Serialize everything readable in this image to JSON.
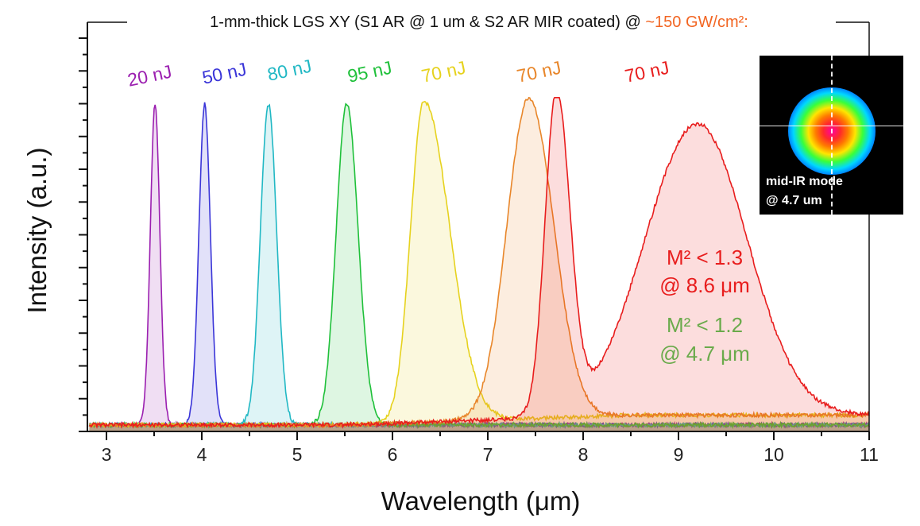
{
  "chart_data": {
    "type": "line",
    "title_main": "1-mm-thick LGS XY (S1 AR @ 1 um & S2 AR MIR coated) @ ",
    "title_highlight": "~150 GW/cm²:",
    "title_highlight_color": "#f26522",
    "xlabel": "Wavelength (μm)",
    "ylabel": "Intensity (a.u.)",
    "xlim": [
      2.8,
      11
    ],
    "ylim": [
      0,
      1.25
    ],
    "xticks": [
      "3",
      "4",
      "5",
      "6",
      "7",
      "8",
      "9",
      "10",
      "11"
    ],
    "y_tick_count": 12,
    "series": [
      {
        "name": "20 nJ",
        "label": "20 nJ",
        "color": "#9b1fb0",
        "peak": 3.51,
        "amplitude": 1.0,
        "sigma_left": 0.05,
        "sigma_right": 0.05
      },
      {
        "name": "50 nJ",
        "label": "50 nJ",
        "color": "#3a35d8",
        "peak": 4.03,
        "amplitude": 1.0,
        "sigma_left": 0.06,
        "sigma_right": 0.06
      },
      {
        "name": "80 nJ",
        "label": "80 nJ",
        "color": "#21b8c4",
        "peak": 4.7,
        "amplitude": 1.0,
        "sigma_left": 0.085,
        "sigma_right": 0.085
      },
      {
        "name": "95 nJ",
        "label": "95 nJ",
        "color": "#1fc03a",
        "peak": 5.52,
        "amplitude": 1.0,
        "sigma_left": 0.11,
        "sigma_right": 0.12
      },
      {
        "name": "70 nJ (6.3 um)",
        "label": "70 nJ",
        "color": "#e6d21e",
        "peak": 6.33,
        "amplitude": 1.0,
        "sigma_left": 0.14,
        "sigma_right": 0.27
      },
      {
        "name": "70 nJ (7.4 um)",
        "label": "70 nJ",
        "color": "#e8862a",
        "peak": 7.43,
        "amplitude": 1.0,
        "sigma_left": 0.23,
        "sigma_right": 0.26
      },
      {
        "name": "70 nJ (7.7 & 9.2 um)",
        "label": "70 nJ",
        "color": "#e81d1d",
        "peak": 7.72,
        "amplitude": 1.0,
        "sigma_left": 0.12,
        "sigma_right": 0.14,
        "secondary_peak": 9.2,
        "secondary_amplitude": 0.91,
        "secondary_sigma_left": 0.55,
        "secondary_sigma_right": 0.52
      }
    ]
  },
  "annotations": {
    "red_line1": "M² < 1.3",
    "red_line2": "@ 8.6 μm",
    "red_color": "#e81d1d",
    "green_line1": "M² < 1.2",
    "green_line2": "@ 4.7 μm",
    "green_color": "#6aaa4b"
  },
  "inset": {
    "caption_line1": "mid-IR mode",
    "caption_line2": "@ 4.7 um"
  }
}
